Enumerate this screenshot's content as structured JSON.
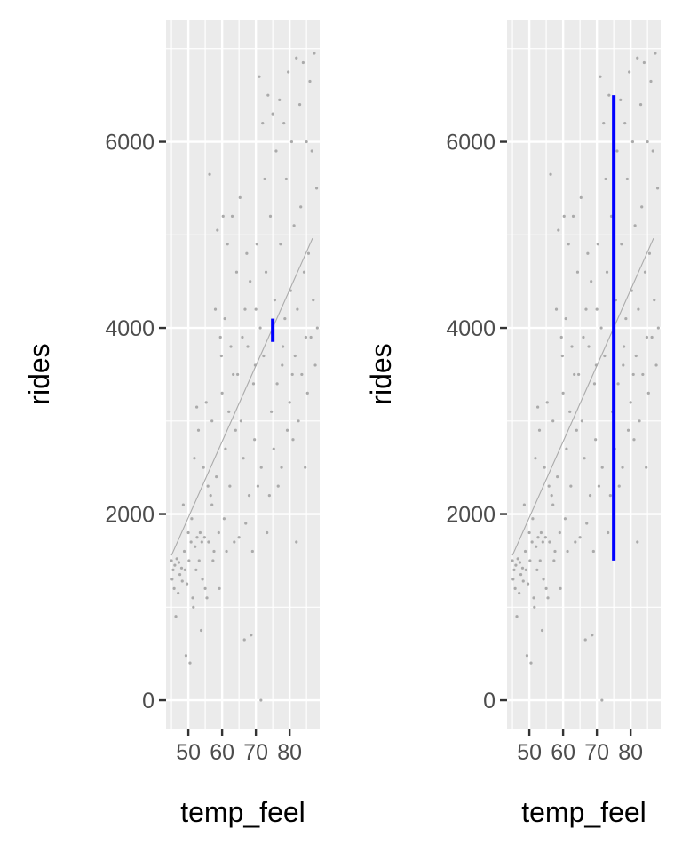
{
  "chart_data": [
    {
      "type": "scatter",
      "xlabel": "temp_feel",
      "ylabel": "rides",
      "xlim": [
        43.4,
        88.9
      ],
      "ylim": [
        -305,
        7313
      ],
      "x_ticks": [
        50,
        60,
        70,
        80
      ],
      "y_ticks": [
        0,
        2000,
        4000,
        6000
      ],
      "grid": true,
      "background": "#ebebeb",
      "point_color": "#aaaaaa",
      "trend_line": {
        "x": [
          45,
          86.8
        ],
        "y": [
          1556,
          4964
        ],
        "color": "#aaaaaa"
      },
      "interval": {
        "x": 75,
        "low": 3850,
        "high": 4100,
        "color": "#0000ff"
      }
    },
    {
      "type": "scatter",
      "xlabel": "temp_feel",
      "ylabel": "rides",
      "xlim": [
        43.4,
        88.9
      ],
      "ylim": [
        -305,
        7313
      ],
      "x_ticks": [
        50,
        60,
        70,
        80
      ],
      "y_ticks": [
        0,
        2000,
        4000,
        6000
      ],
      "grid": true,
      "background": "#ebebeb",
      "point_color": "#aaaaaa",
      "trend_line": {
        "x": [
          45,
          86.8
        ],
        "y": [
          1556,
          4964
        ],
        "color": "#aaaaaa"
      },
      "interval": {
        "x": 75,
        "low": 1500,
        "high": 6500,
        "color": "#0000ff"
      }
    }
  ],
  "points": [
    [
      45,
      1500
    ],
    [
      45.2,
      1300
    ],
    [
      45.5,
      1400
    ],
    [
      45.8,
      1200
    ],
    [
      46,
      1450
    ],
    [
      46.3,
      900
    ],
    [
      46.6,
      1520
    ],
    [
      47,
      1150
    ],
    [
      47.2,
      1480
    ],
    [
      47.5,
      1350
    ],
    [
      48,
      1420
    ],
    [
      48.2,
      1280
    ],
    [
      48.5,
      2100
    ],
    [
      48.8,
      1600
    ],
    [
      49,
      1400
    ],
    [
      49.3,
      480
    ],
    [
      49.6,
      1250
    ],
    [
      50,
      1800
    ],
    [
      50.2,
      1500
    ],
    [
      50.5,
      400
    ],
    [
      50.8,
      1700
    ],
    [
      51,
      1950
    ],
    [
      51.3,
      1100
    ],
    [
      51.5,
      1000
    ],
    [
      51.8,
      2600
    ],
    [
      52,
      1650
    ],
    [
      52.3,
      1400
    ],
    [
      52.6,
      1750
    ],
    [
      53,
      2900
    ],
    [
      53.2,
      1500
    ],
    [
      53.5,
      1800
    ],
    [
      53.8,
      750
    ],
    [
      54,
      1700
    ],
    [
      54.2,
      1300
    ],
    [
      54.5,
      2500
    ],
    [
      54.8,
      1750
    ],
    [
      55,
      1200
    ],
    [
      55.3,
      3200
    ],
    [
      55.5,
      1100
    ],
    [
      55.8,
      2300
    ],
    [
      56,
      1700
    ],
    [
      56.3,
      5650
    ],
    [
      56.6,
      2200
    ],
    [
      57,
      3000
    ],
    [
      57.3,
      1500
    ],
    [
      57.6,
      1600
    ],
    [
      58,
      4200
    ],
    [
      58.3,
      2400
    ],
    [
      58.6,
      5050
    ],
    [
      59,
      1800
    ],
    [
      59.2,
      1200
    ],
    [
      59.5,
      3900
    ],
    [
      59.8,
      3700
    ],
    [
      60,
      3300
    ],
    [
      60.3,
      5200
    ],
    [
      60.6,
      1950
    ],
    [
      61,
      2700
    ],
    [
      61.3,
      1600
    ],
    [
      61.6,
      4900
    ],
    [
      62,
      3100
    ],
    [
      62.3,
      2300
    ],
    [
      62.6,
      3800
    ],
    [
      63,
      5200
    ],
    [
      63.3,
      3500
    ],
    [
      63.6,
      1700
    ],
    [
      64,
      2900
    ],
    [
      64.3,
      4600
    ],
    [
      64.6,
      3500
    ],
    [
      65,
      1750
    ],
    [
      65.3,
      5400
    ],
    [
      65.6,
      3000
    ],
    [
      66,
      3900
    ],
    [
      66.3,
      2600
    ],
    [
      66.6,
      650
    ],
    [
      67,
      1900
    ],
    [
      67.3,
      4800
    ],
    [
      67.6,
      3800
    ],
    [
      68,
      2200
    ],
    [
      68.3,
      4500
    ],
    [
      68.6,
      700
    ],
    [
      69,
      1600
    ],
    [
      69.3,
      3400
    ],
    [
      69.6,
      2800
    ],
    [
      70,
      4200
    ],
    [
      70.3,
      4900
    ],
    [
      70.6,
      2300
    ],
    [
      71,
      6700
    ],
    [
      71.3,
      4000
    ],
    [
      71.6,
      2500
    ],
    [
      72,
      6200
    ],
    [
      72.3,
      3700
    ],
    [
      72.6,
      5600
    ],
    [
      73,
      4600
    ],
    [
      73.3,
      1800
    ],
    [
      73.6,
      6500
    ],
    [
      74,
      2200
    ],
    [
      74.3,
      5200
    ],
    [
      74.6,
      3100
    ],
    [
      75,
      6300
    ],
    [
      75.3,
      2700
    ],
    [
      75.6,
      4300
    ],
    [
      76,
      5900
    ],
    [
      76.3,
      3400
    ],
    [
      76.6,
      2300
    ],
    [
      77,
      6450
    ],
    [
      77.3,
      4900
    ],
    [
      77.6,
      2500
    ],
    [
      78,
      3800
    ],
    [
      78.3,
      6200
    ],
    [
      78.6,
      4100
    ],
    [
      79,
      5600
    ],
    [
      79.3,
      2900
    ],
    [
      79.6,
      6750
    ],
    [
      80,
      3200
    ],
    [
      80.3,
      4400
    ],
    [
      80.6,
      6000
    ],
    [
      81,
      2800
    ],
    [
      81.3,
      5100
    ],
    [
      81.6,
      3700
    ],
    [
      82,
      6900
    ],
    [
      82.3,
      4200
    ],
    [
      82.6,
      3000
    ],
    [
      83,
      6400
    ],
    [
      83.3,
      5300
    ],
    [
      83.6,
      3500
    ],
    [
      84,
      6850
    ],
    [
      84.3,
      4600
    ],
    [
      84.6,
      2500
    ],
    [
      85,
      6000
    ],
    [
      85.3,
      3300
    ],
    [
      85.6,
      4800
    ],
    [
      86,
      6650
    ],
    [
      86.3,
      3900
    ],
    [
      86.6,
      5900
    ],
    [
      87,
      4300
    ],
    [
      87.3,
      6950
    ],
    [
      87.6,
      3600
    ],
    [
      88,
      5500
    ],
    [
      88.2,
      4000
    ],
    [
      82,
      1700
    ],
    [
      71.5,
      0
    ],
    [
      57,
      2100
    ],
    [
      52.5,
      3150
    ],
    [
      60.8,
      4100
    ],
    [
      66.8,
      4200
    ],
    [
      69.8,
      3600
    ],
    [
      74.8,
      3950
    ],
    [
      77.8,
      3600
    ],
    [
      80.8,
      3500
    ],
    [
      84.8,
      3900
    ]
  ]
}
